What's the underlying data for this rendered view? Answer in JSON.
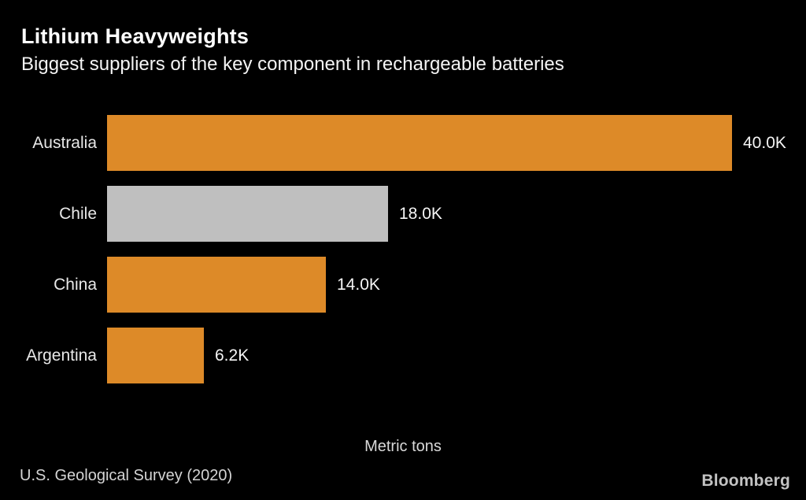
{
  "chart_data": {
    "type": "bar",
    "orientation": "horizontal",
    "title": "Lithium Heavyweights",
    "subtitle": "Biggest suppliers of the key component in rechargeable batteries",
    "categories": [
      "Australia",
      "Chile",
      "China",
      "Argentina"
    ],
    "values": [
      40000,
      18000,
      14000,
      6200
    ],
    "value_labels": [
      "40.0K",
      "18.0K",
      "14.0K",
      "6.2K"
    ],
    "bar_colors": [
      "#DD8A28",
      "#BFBFBF",
      "#DD8A28",
      "#DD8A28"
    ],
    "xlabel": "Metric tons",
    "ylabel": "",
    "xlim": [
      0,
      40000
    ],
    "grid": false,
    "legend": "none",
    "source": "U.S. Geological Survey (2020)",
    "brand": "Bloomberg"
  },
  "colors": {
    "background": "#000000",
    "accent_orange": "#DD8A28",
    "neutral_gray_bar": "#BFBFBF",
    "title_text": "#FFFFFF",
    "category_text": "#E8E8E8",
    "value_text": "#F5F5F5",
    "muted_text": "#D4D4D4",
    "brand_text": "#C3C3C3"
  }
}
